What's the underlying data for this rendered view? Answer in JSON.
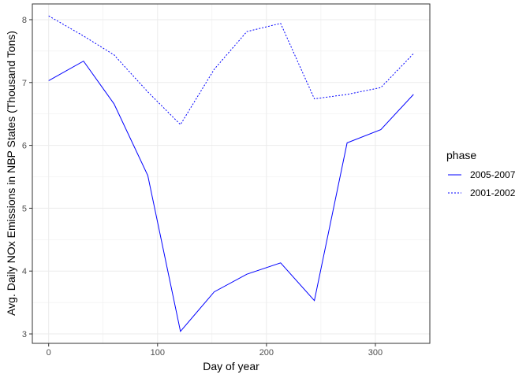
{
  "chart_data": {
    "type": "line",
    "xlabel": "Day of year",
    "ylabel": "Avg. Daily NOx Emissions in NBP States (Thousand Tons)",
    "xlim": [
      -15,
      350
    ],
    "ylim": [
      2.85,
      8.25
    ],
    "xticks": [
      0,
      100,
      200,
      300
    ],
    "xtick_labels": [
      "0",
      "100",
      "200",
      "300"
    ],
    "yticks": [
      3,
      4,
      5,
      6,
      7,
      8
    ],
    "ytick_labels": [
      "3",
      "4",
      "5",
      "6",
      "7",
      "8"
    ],
    "grid": true,
    "legend": {
      "title": "phase",
      "position": "right"
    },
    "series": [
      {
        "name": "2005-2007",
        "color": "#0000ff",
        "dash": "solid",
        "x": [
          0,
          32,
          60,
          91,
          121,
          152,
          182,
          213,
          244,
          274,
          305,
          335
        ],
        "y": [
          7.03,
          7.34,
          6.66,
          5.52,
          3.04,
          3.67,
          3.95,
          4.13,
          3.53,
          6.04,
          6.25,
          6.81
        ]
      },
      {
        "name": "2001-2002",
        "color": "#0000ff",
        "dash": "dotted",
        "x": [
          0,
          32,
          60,
          91,
          121,
          152,
          182,
          213,
          244,
          274,
          305,
          335
        ],
        "y": [
          8.06,
          7.74,
          7.44,
          6.85,
          6.33,
          7.21,
          7.81,
          7.94,
          6.74,
          6.81,
          6.92,
          7.46
        ]
      }
    ]
  }
}
